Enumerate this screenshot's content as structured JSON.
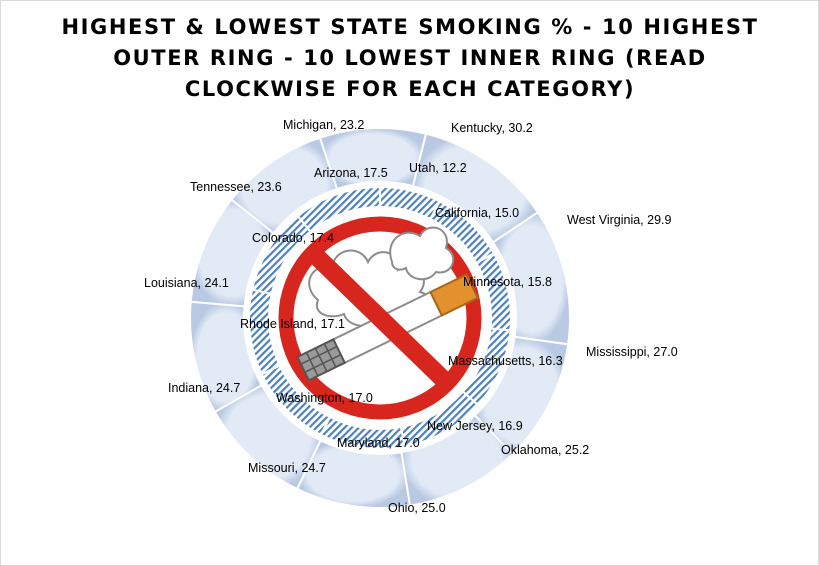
{
  "chart_data": {
    "type": "pie",
    "title": "HIGHEST & LOWEST STATE SMOKING % - 10 HIGHEST OUTER RING - 10 LOWEST INNER RING (READ CLOCKWISE FOR EACH CATEGORY)",
    "series": [
      {
        "ring": "outer",
        "categories": [
          "Kentucky",
          "West Virginia",
          "Mississippi",
          "Oklahoma",
          "Ohio",
          "Missouri",
          "Indiana",
          "Louisiana",
          "Tennessee",
          "Michigan"
        ],
        "values": [
          30.2,
          29.9,
          27.0,
          25.2,
          25.0,
          24.7,
          24.7,
          24.1,
          23.6,
          23.2
        ],
        "labels": [
          "Kentucky, 30.2",
          "West Virginia, 29.9",
          "Mississippi,  27.0",
          "Oklahoma, 25.2",
          "Ohio, 25.0",
          "Missouri, 24.7",
          "Indiana, 24.7",
          "Louisiana, 24.1",
          "Tennessee, 23.6",
          "Michigan, 23.2"
        ]
      },
      {
        "ring": "inner",
        "categories": [
          "Utah",
          "California",
          "Minnesota",
          "Massachusetts",
          "New Jersey",
          "Maryland",
          "Washington",
          "Rhode Island",
          "Colorado",
          "Arizona"
        ],
        "values": [
          12.2,
          15.0,
          15.8,
          16.3,
          16.9,
          17.0,
          17.0,
          17.1,
          17.4,
          17.5
        ],
        "labels": [
          "Utah, 12.2",
          "California, 15.0",
          "Minnesota, 15.8",
          "Massachusetts, 16.3",
          "New Jersey, 16.9",
          "Maryland, 17.0",
          "Washington, 17.0",
          "Rhode Island, 17.1",
          "Colorado, 17.4",
          "Arizona, 17.5"
        ]
      }
    ],
    "legend": "none"
  },
  "center_icon": "no-smoking-icon",
  "colors": {
    "outer_fill": "#cfdcee",
    "inner_hatch": "#4f81bd",
    "ring_edge": "#ffffff",
    "sign_red": "#d7261e",
    "smoke": "#ffffff",
    "cigarette_filter": "#e3902f"
  }
}
